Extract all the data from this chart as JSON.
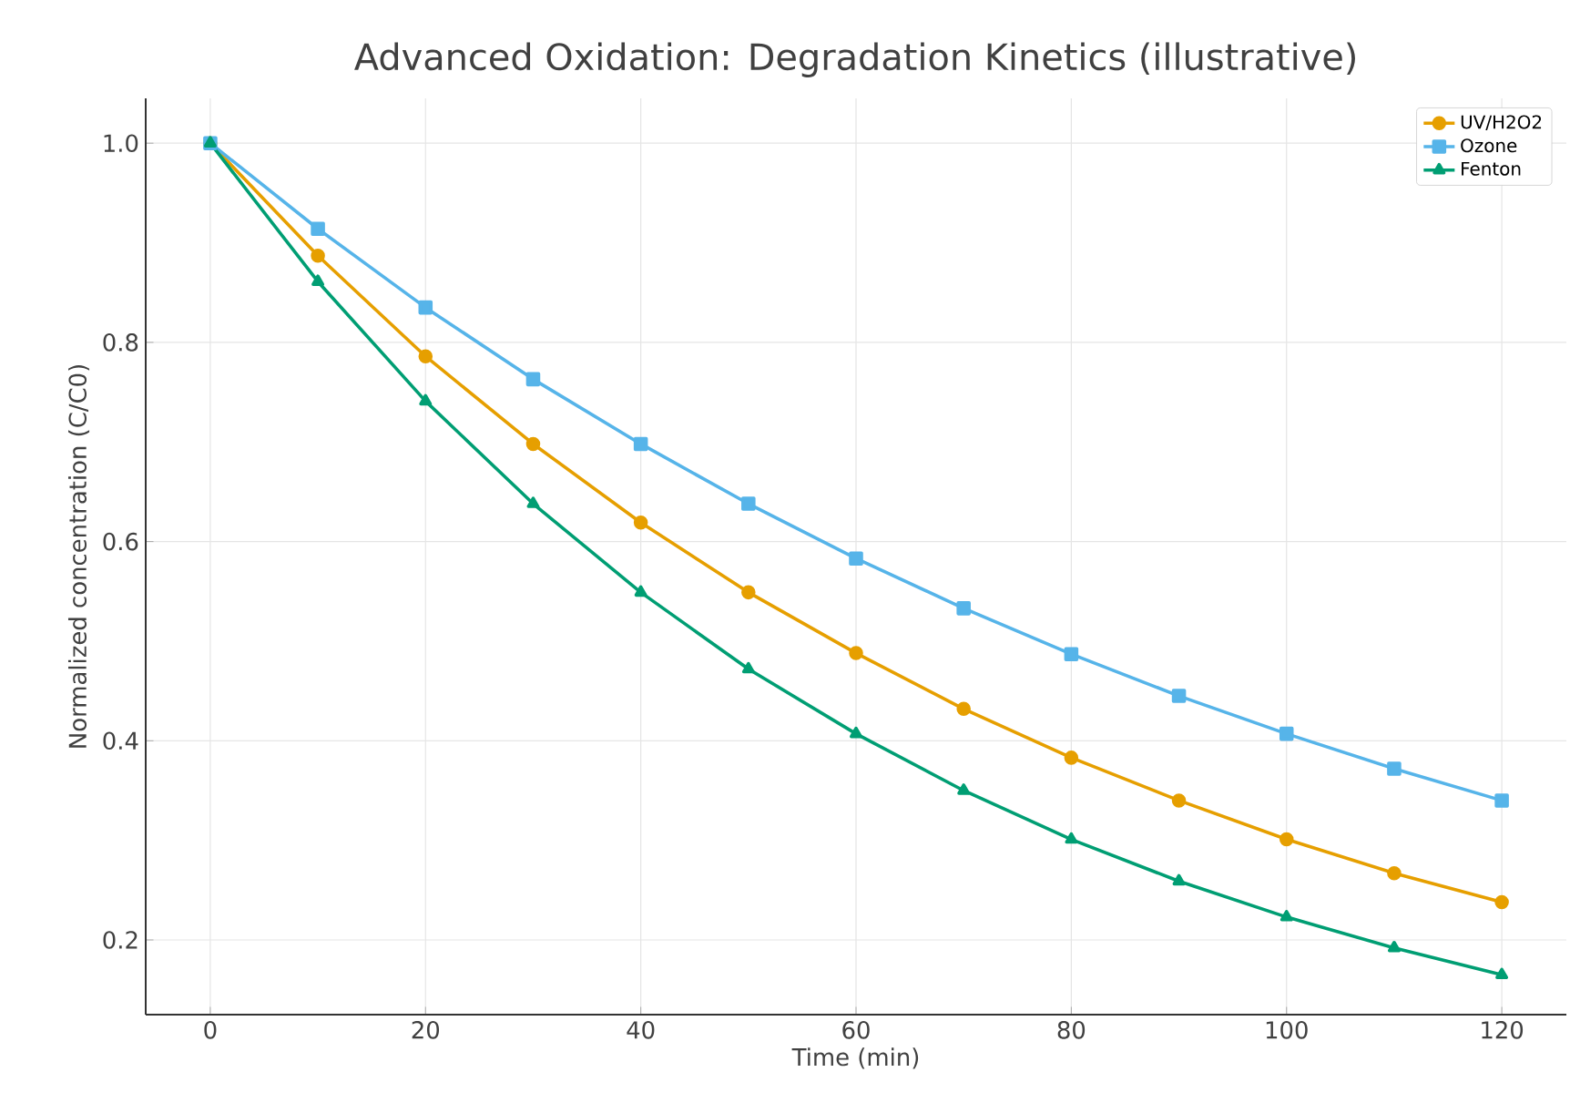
{
  "chart_data": {
    "type": "line",
    "title": "Advanced Oxidation: Degradation Kinetics (illustrative)",
    "xlabel": "Time (min)",
    "ylabel": "Normalized concentration (C/C0)",
    "x": [
      0,
      10,
      20,
      30,
      40,
      50,
      60,
      70,
      80,
      90,
      100,
      110,
      120
    ],
    "series": [
      {
        "name": "UV/H2O2",
        "color": "#e69f00",
        "marker": "circle",
        "values": [
          1.0,
          0.887,
          0.786,
          0.698,
          0.619,
          0.549,
          0.488,
          0.432,
          0.383,
          0.34,
          0.301,
          0.267,
          0.238
        ]
      },
      {
        "name": "Ozone",
        "color": "#56b4e9",
        "marker": "square",
        "values": [
          1.0,
          0.914,
          0.835,
          0.763,
          0.698,
          0.638,
          0.583,
          0.533,
          0.487,
          0.445,
          0.407,
          0.372,
          0.34
        ]
      },
      {
        "name": "Fenton",
        "color": "#009e73",
        "marker": "triangle",
        "values": [
          1.0,
          0.861,
          0.741,
          0.638,
          0.549,
          0.472,
          0.407,
          0.35,
          0.301,
          0.259,
          0.223,
          0.192,
          0.165
        ]
      }
    ],
    "xlim": [
      -6,
      126
    ],
    "ylim": [
      0.125,
      1.045
    ],
    "xticks": [
      0,
      20,
      40,
      60,
      80,
      100,
      120
    ],
    "yticks": [
      {
        "value": 0.2,
        "label": "0.2"
      },
      {
        "value": 0.4,
        "label": "0.4"
      },
      {
        "value": 0.6,
        "label": "0.6"
      },
      {
        "value": 0.8,
        "label": "0.8"
      },
      {
        "value": 1.0,
        "label": "1.0"
      }
    ],
    "grid": true,
    "legend": "top right",
    "line_style": "solid"
  }
}
